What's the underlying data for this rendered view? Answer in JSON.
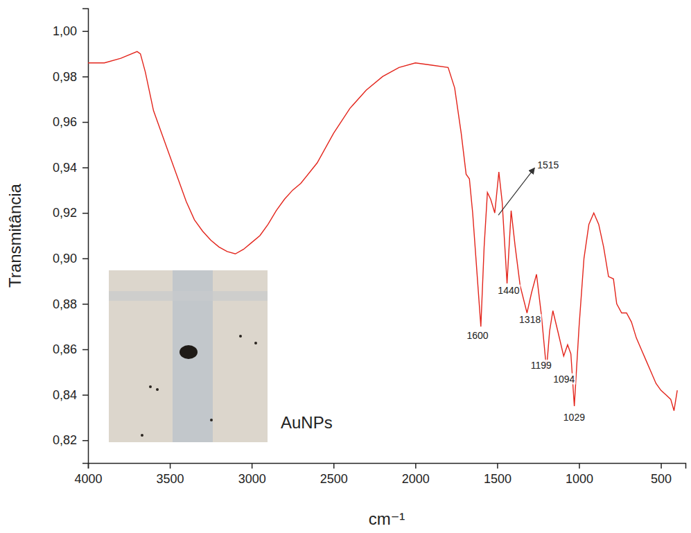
{
  "chart_data": {
    "type": "line",
    "xlabel": "cm⁻¹",
    "ylabel": "Transmitância",
    "color": "#e3241b",
    "xlim": [
      4000,
      350
    ],
    "xticks": [
      4000,
      3500,
      3000,
      2500,
      2000,
      1500,
      1000,
      500
    ],
    "ylim": [
      0.81,
      1.01
    ],
    "yticks": [
      {
        "value": 0.82,
        "label": "0,82"
      },
      {
        "value": 0.84,
        "label": "0,84"
      },
      {
        "value": 0.86,
        "label": "0,86"
      },
      {
        "value": 0.88,
        "label": "0,88"
      },
      {
        "value": 0.9,
        "label": "0,90"
      },
      {
        "value": 0.92,
        "label": "0,92"
      },
      {
        "value": 0.94,
        "label": "0,94"
      },
      {
        "value": 0.96,
        "label": "0,96"
      },
      {
        "value": 0.98,
        "label": "0,98"
      },
      {
        "value": 1.0,
        "label": "1,00"
      }
    ],
    "grid": false,
    "x": [
      4000,
      3900,
      3800,
      3700,
      3680,
      3650,
      3600,
      3550,
      3500,
      3450,
      3400,
      3350,
      3300,
      3250,
      3200,
      3150,
      3100,
      3050,
      3000,
      2950,
      2900,
      2850,
      2800,
      2750,
      2700,
      2600,
      2500,
      2400,
      2300,
      2200,
      2100,
      2000,
      1900,
      1800,
      1760,
      1720,
      1690,
      1670,
      1650,
      1620,
      1600,
      1580,
      1560,
      1540,
      1515,
      1490,
      1470,
      1440,
      1415,
      1390,
      1360,
      1318,
      1290,
      1260,
      1230,
      1199,
      1180,
      1160,
      1130,
      1094,
      1070,
      1050,
      1029,
      1000,
      970,
      940,
      910,
      880,
      850,
      820,
      790,
      770,
      740,
      710,
      680,
      650,
      620,
      590,
      560,
      530,
      500,
      470,
      440,
      420,
      400
    ],
    "values": [
      0.986,
      0.986,
      0.988,
      0.991,
      0.99,
      0.982,
      0.965,
      0.955,
      0.945,
      0.935,
      0.925,
      0.917,
      0.912,
      0.908,
      0.905,
      0.903,
      0.902,
      0.904,
      0.907,
      0.91,
      0.915,
      0.921,
      0.926,
      0.93,
      0.933,
      0.942,
      0.955,
      0.966,
      0.974,
      0.98,
      0.984,
      0.986,
      0.985,
      0.984,
      0.975,
      0.955,
      0.937,
      0.935,
      0.92,
      0.89,
      0.87,
      0.905,
      0.929,
      0.926,
      0.92,
      0.938,
      0.925,
      0.889,
      0.921,
      0.905,
      0.888,
      0.876,
      0.885,
      0.893,
      0.875,
      0.851,
      0.868,
      0.877,
      0.868,
      0.857,
      0.862,
      0.858,
      0.835,
      0.87,
      0.9,
      0.915,
      0.92,
      0.915,
      0.905,
      0.892,
      0.891,
      0.88,
      0.876,
      0.876,
      0.872,
      0.865,
      0.86,
      0.855,
      0.85,
      0.845,
      0.842,
      0.84,
      0.838,
      0.833,
      0.842
    ],
    "annotations": [
      {
        "text": "1600",
        "x": 1620,
        "y": 0.866
      },
      {
        "text": "1440",
        "x": 1430,
        "y": 0.886
      },
      {
        "text": "1318",
        "x": 1300,
        "y": 0.873
      },
      {
        "text": "1199",
        "x": 1232,
        "y": 0.853
      },
      {
        "text": "1094",
        "x": 1092,
        "y": 0.847
      },
      {
        "text": "1029",
        "x": 1030,
        "y": 0.83
      },
      {
        "text": "1515",
        "x": 1255,
        "y": 0.941,
        "arrow_from": [
          1493,
          0.919
        ]
      }
    ],
    "inset_label": "AuNPs"
  }
}
